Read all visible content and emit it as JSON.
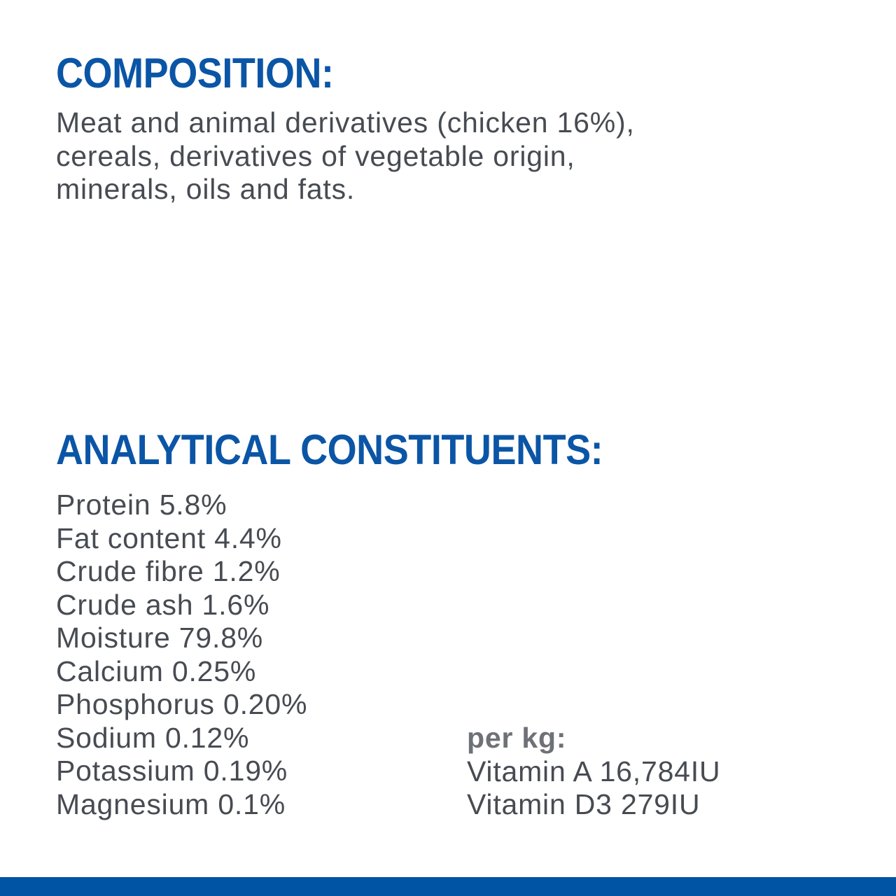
{
  "colors": {
    "heading_blue": "#0b55a6",
    "body_gray": "#474b52",
    "per_kg_gray": "#6e7175",
    "footer_bar_blue": "#0054a4",
    "background": "#ffffff"
  },
  "composition": {
    "heading": "COMPOSITION:",
    "lines": [
      "Meat and animal derivatives (chicken 16%),",
      "cereals, derivatives of vegetable origin,",
      "minerals, oils and fats."
    ]
  },
  "analytical": {
    "heading": "ANALYTICAL CONSTITUENTS:",
    "constituents": [
      "Protein 5.8%",
      "Fat content 4.4%",
      "Crude fibre 1.2%",
      "Crude ash 1.6%",
      "Moisture 79.8%",
      "Calcium 0.25%",
      "Phosphorus 0.20%",
      "Sodium 0.12%",
      "Potassium 0.19%",
      "Magnesium 0.1%"
    ],
    "per_kg": {
      "label": "per kg:",
      "vitamins": [
        "Vitamin A 16,784IU",
        "Vitamin D3 279IU"
      ]
    }
  }
}
